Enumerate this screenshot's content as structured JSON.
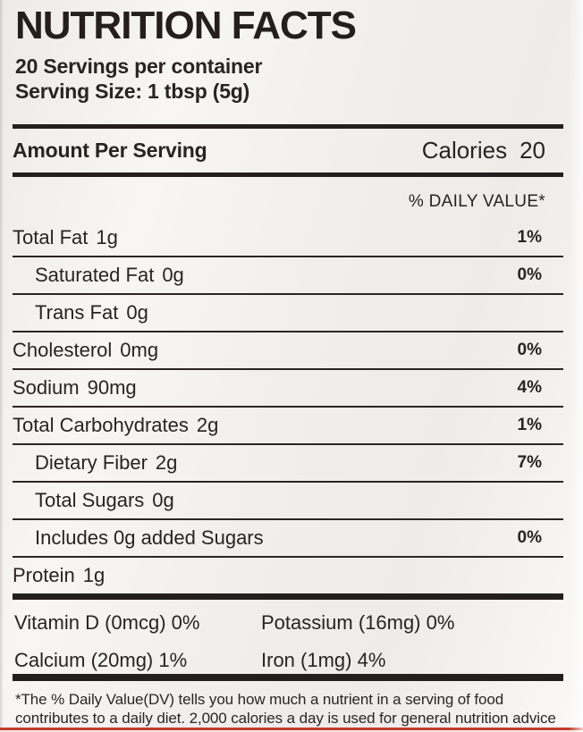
{
  "colors": {
    "background": "#f2efee",
    "text": "#292324",
    "rule": "#2b2526",
    "accent_red": "#c53a2d"
  },
  "header": {
    "title": "NUTRITION FACTS",
    "servings_per_container": "20 Servings per container",
    "serving_size": "Serving Size: 1 tbsp (5g)"
  },
  "summary": {
    "amount_per_serving": "Amount Per Serving",
    "calories_label": "Calories",
    "calories_value": "20",
    "daily_value_header": "% DAILY VALUE*"
  },
  "nutrients": [
    {
      "name": "Total Fat",
      "amount": "1g",
      "daily_value": "1%"
    },
    {
      "name": "Saturated Fat",
      "amount": "0g",
      "daily_value": "0%"
    },
    {
      "name": "Trans Fat",
      "amount": "0g",
      "daily_value": ""
    },
    {
      "name": "Cholesterol",
      "amount": "0mg",
      "daily_value": "0%"
    },
    {
      "name": "Sodium",
      "amount": "90mg",
      "daily_value": "4%"
    },
    {
      "name": "Total Carbohydrates",
      "amount": "2g",
      "daily_value": "1%"
    },
    {
      "name": "Dietary Fiber",
      "amount": "2g",
      "daily_value": "7%"
    },
    {
      "name": "Total Sugars",
      "amount": "0g",
      "daily_value": ""
    },
    {
      "name": "Includes 0g added Sugars",
      "amount": "",
      "daily_value": "0%"
    },
    {
      "name": "Protein",
      "amount": "1g",
      "daily_value": ""
    }
  ],
  "micronutrients": [
    "Vitamin D (0mcg) 0%",
    "Potassium (16mg) 0%",
    "Calcium (20mg) 1%",
    "Iron (1mg) 4%"
  ],
  "footnote": {
    "lines": [
      "*The % Daily Value(DV) tells you how much a nutrient in a serving of food",
      "contributes to a daily diet. 2,000 calories a day is used for general nutrition advice"
    ]
  }
}
